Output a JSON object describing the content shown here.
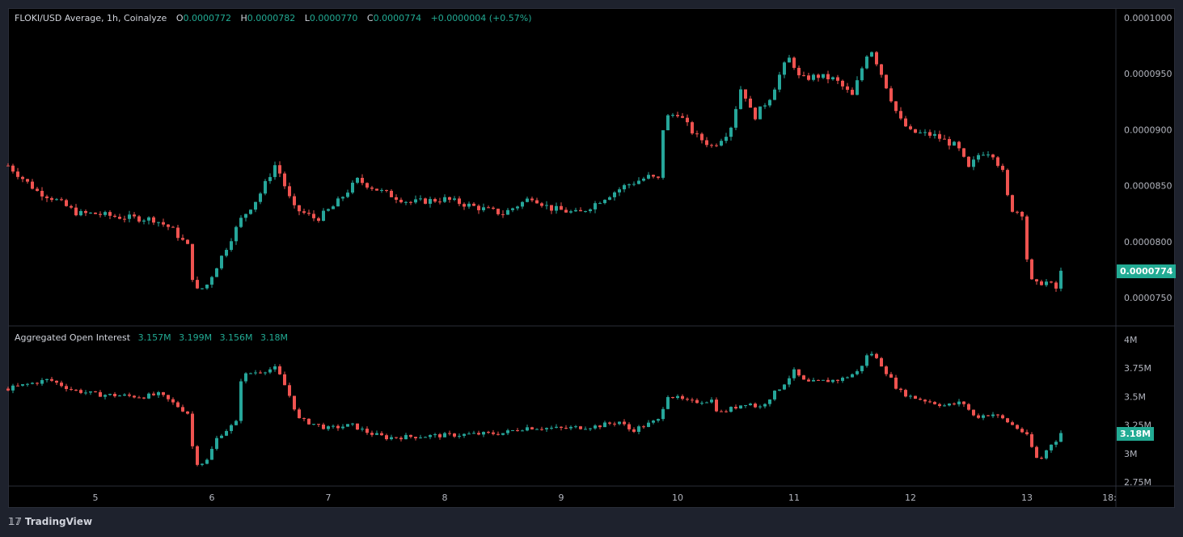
{
  "header": {
    "symbol": "FLOKI/USD Average, 1h, Coinalyze",
    "o_label": "O",
    "o": "0.0000772",
    "h_label": "H",
    "h": "0.0000782",
    "l_label": "L",
    "l": "0.0000770",
    "c_label": "C",
    "c": "0.0000774",
    "change": "+0.0000004 (+0.57%)"
  },
  "oi_legend": {
    "title": "Aggregated Open Interest",
    "v1": "3.157M",
    "v2": "3.199M",
    "v3": "3.156M",
    "v4": "3.18M"
  },
  "price_axis": {
    "ticks": [
      "0.0001000",
      "0.0000950",
      "0.0000900",
      "0.0000850",
      "0.0000800",
      "0.0000750"
    ],
    "last": "0.0000774"
  },
  "oi_axis": {
    "ticks": [
      "4M",
      "3.75M",
      "3.5M",
      "3.25M",
      "3M",
      "2.75M"
    ],
    "last": "3.18M"
  },
  "time_axis": {
    "ticks": [
      "5",
      "6",
      "7",
      "8",
      "9",
      "10",
      "11",
      "12",
      "13",
      "18:"
    ]
  },
  "brand": "TradingView",
  "colors": {
    "up": "#26a69a",
    "down": "#ef5350"
  },
  "chart_data": [
    {
      "type": "candlestick",
      "title": "FLOKI/USD Average, 1h",
      "unit": "1e-7 USD",
      "ylim": [
        74,
        101
      ],
      "x_days": [
        4.25,
        4.5,
        4.65,
        4.85,
        5.0,
        5.2,
        5.5,
        5.65,
        5.8,
        5.85,
        5.95,
        6.1,
        6.25,
        6.4,
        6.55,
        6.7,
        6.9,
        7.05,
        7.25,
        7.45,
        7.7,
        8.0,
        8.3,
        8.5,
        8.75,
        8.9,
        9.15,
        9.35,
        9.55,
        9.75,
        9.85,
        9.88,
        10.0,
        10.15,
        10.3,
        10.45,
        10.55,
        10.65,
        10.8,
        10.9,
        10.97,
        11.05,
        11.2,
        11.35,
        11.5,
        11.6,
        11.65,
        11.75,
        11.9,
        12.0,
        12.2,
        12.4,
        12.5,
        12.6,
        12.7,
        12.8,
        12.85,
        12.97,
        13.0,
        13.05,
        13.15,
        13.25,
        13.33
      ],
      "close": [
        868,
        845,
        838,
        825,
        825,
        822,
        820,
        812,
        795,
        755,
        760,
        790,
        820,
        840,
        870,
        830,
        820,
        832,
        855,
        845,
        835,
        838,
        830,
        825,
        840,
        830,
        825,
        838,
        850,
        858,
        855,
        910,
        915,
        895,
        885,
        900,
        940,
        910,
        930,
        955,
        965,
        945,
        948,
        945,
        930,
        960,
        975,
        950,
        910,
        898,
        895,
        885,
        865,
        880,
        880,
        860,
        830,
        825,
        785,
        760,
        765,
        758,
        774
      ]
    },
    {
      "type": "candlestick",
      "title": "Aggregated Open Interest",
      "unit": "M",
      "ylim": [
        2.75,
        4
      ],
      "x_days": [
        4.25,
        4.6,
        4.8,
        5.0,
        5.4,
        5.55,
        5.7,
        5.8,
        5.85,
        5.95,
        6.05,
        6.22,
        6.25,
        6.3,
        6.55,
        6.65,
        6.75,
        7.0,
        7.2,
        7.35,
        7.5,
        8.0,
        8.5,
        8.7,
        9.0,
        9.3,
        9.5,
        9.6,
        9.85,
        9.9,
        10.1,
        10.3,
        10.35,
        10.6,
        10.7,
        10.9,
        11.0,
        11.1,
        11.4,
        11.55,
        11.65,
        11.75,
        11.9,
        12.0,
        12.3,
        12.45,
        12.55,
        12.7,
        12.8,
        12.95,
        13.0,
        13.1,
        13.2,
        13.33
      ],
      "close": [
        3.57,
        3.65,
        3.56,
        3.52,
        3.5,
        3.52,
        3.42,
        3.35,
        2.92,
        2.92,
        3.15,
        3.28,
        3.65,
        3.7,
        3.75,
        3.55,
        3.3,
        3.22,
        3.25,
        3.18,
        3.14,
        3.16,
        3.18,
        3.23,
        3.22,
        3.24,
        3.28,
        3.2,
        3.3,
        3.52,
        3.45,
        3.47,
        3.35,
        3.45,
        3.4,
        3.6,
        3.72,
        3.62,
        3.65,
        3.72,
        3.9,
        3.78,
        3.55,
        3.5,
        3.42,
        3.45,
        3.32,
        3.35,
        3.3,
        3.2,
        3.15,
        2.92,
        3.08,
        3.18
      ]
    }
  ]
}
